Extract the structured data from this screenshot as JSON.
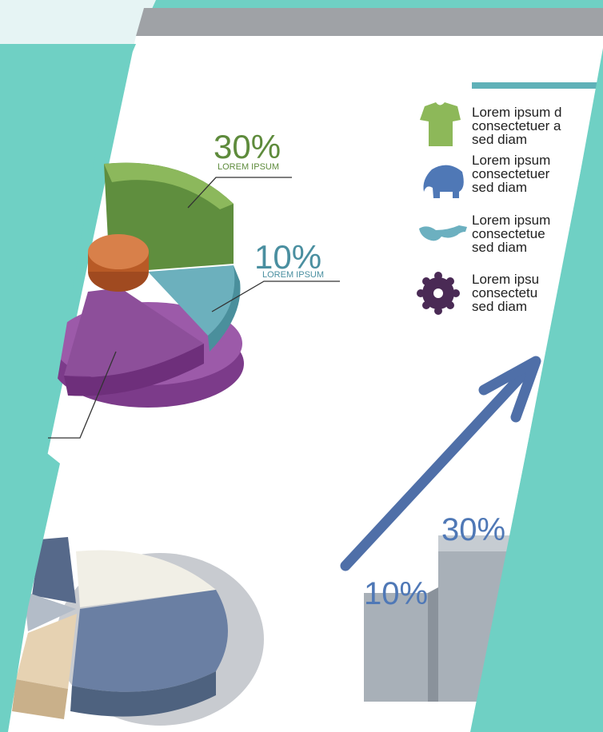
{
  "background_color": "#6fd0c4",
  "pie_top": {
    "callouts": [
      {
        "percent": "30%",
        "caption": "LOREM IPSUM",
        "color": "#5e8b3c"
      },
      {
        "percent": "10%",
        "caption": "LOREM IPSUM",
        "color": "#4a8fa0"
      }
    ]
  },
  "legend": {
    "items": [
      {
        "icon": "tshirt-icon",
        "color": "#8db859",
        "lines": [
          "Lorem ipsum d",
          "consectetuer a",
          "sed diam"
        ]
      },
      {
        "icon": "elephant-icon",
        "color": "#4f78b6",
        "lines": [
          "Lorem ipsum",
          "consectetuer",
          "sed diam"
        ]
      },
      {
        "icon": "glasses-icon",
        "color": "#6cb0c0",
        "lines": [
          "Lorem ipsum",
          "consectetue",
          "sed diam"
        ]
      },
      {
        "icon": "gear-icon",
        "color": "#4a2a55",
        "lines": [
          "Lorem ipsu",
          "consectetu",
          "sed diam"
        ]
      }
    ]
  },
  "bars": {
    "labels": [
      "10%",
      "30%"
    ],
    "label_color": "#4f78b6",
    "arrow_color": "#4f6fa8"
  }
}
